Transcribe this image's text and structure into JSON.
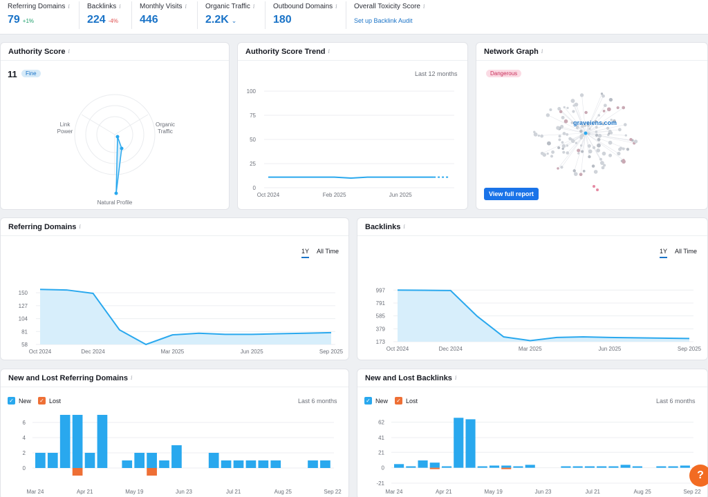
{
  "metrics": [
    {
      "label": "Referring Domains",
      "value": "79",
      "change": "+1%",
      "dir": "pos"
    },
    {
      "label": "Backlinks",
      "value": "224",
      "change": "-4%",
      "dir": "neg"
    },
    {
      "label": "Monthly Visits",
      "value": "446"
    },
    {
      "label": "Organic Traffic",
      "value": "2.2K"
    },
    {
      "label": "Outbound Domains",
      "value": "180"
    },
    {
      "label": "Overall Toxicity Score",
      "link": "Set up Backlink Audit"
    }
  ],
  "authority": {
    "title": "Authority Score",
    "score": "11",
    "badge": "Fine",
    "axes": [
      "Link Power",
      "Organic Traffic",
      "Natural Profile"
    ]
  },
  "trend": {
    "title": "Authority Score Trend",
    "range": "Last 12 months"
  },
  "network": {
    "title": "Network Graph",
    "badge": "Dangerous",
    "domain": "graveiens.com",
    "button": "View full report"
  },
  "referring": {
    "title": "Referring Domains",
    "tabs": [
      "1Y",
      "All Time"
    ]
  },
  "backlinks": {
    "title": "Backlinks",
    "tabs": [
      "1Y",
      "All Time"
    ]
  },
  "newlost_rd": {
    "title": "New and Lost Referring Domains",
    "legend_new": "New",
    "legend_lost": "Lost",
    "range": "Last 6 months"
  },
  "newlost_bl": {
    "title": "New and Lost Backlinks",
    "legend_new": "New",
    "legend_lost": "Lost",
    "range": "Last 6 months"
  },
  "colors": {
    "accent": "#1a73c7",
    "new": "#29a8ee",
    "lost": "#ee6f35",
    "area": "#d7eefb"
  },
  "chart_data": [
    {
      "id": "trend",
      "type": "line",
      "x": [
        "Oct 2024",
        "Nov 2024",
        "Dec 2024",
        "Jan 2025",
        "Feb 2025",
        "Mar 2025",
        "Apr 2025",
        "May 2025",
        "Jun 2025",
        "Jul 2025",
        "Aug 2025",
        "Sep 2025"
      ],
      "values": [
        11,
        11,
        11,
        11,
        11,
        10,
        11,
        11,
        11,
        11,
        11,
        11
      ],
      "projected_from": 10,
      "xticks": [
        "Oct 2024",
        "Feb 2025",
        "Jun 2025"
      ],
      "yticks": [
        0,
        25,
        50,
        75,
        100
      ],
      "ylim": [
        0,
        100
      ],
      "grid": true
    },
    {
      "id": "referring",
      "type": "area",
      "x": [
        "Oct 2024",
        "Nov 2024",
        "Dec 2024",
        "Jan 2025",
        "Feb 2025",
        "Mar 2025",
        "Apr 2025",
        "May 2025",
        "Jun 2025",
        "Jul 2025",
        "Aug 2025",
        "Sep 2025"
      ],
      "values": [
        156,
        155,
        149,
        84,
        58,
        75,
        78,
        76,
        76,
        77,
        78,
        79
      ],
      "xticks": [
        "Oct 2024",
        "Dec 2024",
        "Mar 2025",
        "Jun 2025",
        "Sep 2025"
      ],
      "yticks": [
        58,
        81,
        104,
        127,
        150
      ],
      "ylim": [
        58,
        160
      ],
      "grid": true
    },
    {
      "id": "backlinks",
      "type": "area",
      "x": [
        "Oct 2024",
        "Nov 2024",
        "Dec 2024",
        "Jan 2025",
        "Feb 2025",
        "Mar 2025",
        "Apr 2025",
        "May 2025",
        "Jun 2025",
        "Jul 2025",
        "Aug 2025",
        "Sep 2025"
      ],
      "values": [
        997,
        995,
        990,
        580,
        250,
        190,
        240,
        250,
        240,
        235,
        230,
        224
      ],
      "xticks": [
        "Oct 2024",
        "Dec 2024",
        "Mar 2025",
        "Jun 2025",
        "Sep 2025"
      ],
      "yticks": [
        173,
        379,
        585,
        791,
        997
      ],
      "ylim": [
        173,
        1000
      ],
      "grid": true
    },
    {
      "id": "newlost_rd",
      "type": "bar",
      "series": [
        {
          "name": "New",
          "values": [
            2,
            2,
            7,
            7,
            2,
            7,
            0,
            1,
            2,
            2,
            1,
            3,
            0,
            0,
            2,
            1,
            1,
            1,
            1,
            1,
            0,
            0,
            1,
            1
          ]
        },
        {
          "name": "Lost",
          "values": [
            0,
            0,
            0,
            -1,
            0,
            0,
            0,
            0,
            0,
            -1,
            0,
            0,
            0,
            0,
            0,
            0,
            0,
            0,
            0,
            0,
            0,
            0,
            0,
            0
          ]
        }
      ],
      "xticks": [
        "Mar 24",
        "Apr 21",
        "May 19",
        "Jun 23",
        "Jul 21",
        "Aug 25",
        "Sep 22"
      ],
      "yticks": [
        0,
        2,
        4,
        6
      ],
      "ylim": [
        -2,
        7
      ],
      "grid": true
    },
    {
      "id": "newlost_bl",
      "type": "bar",
      "series": [
        {
          "name": "New",
          "values": [
            5,
            2,
            10,
            7,
            2,
            68,
            66,
            2,
            3,
            3,
            2,
            4,
            0,
            0,
            2,
            2,
            2,
            2,
            2,
            4,
            2,
            0,
            2,
            2,
            3
          ]
        },
        {
          "name": "Lost",
          "values": [
            0,
            0,
            0,
            -1,
            0,
            0,
            0,
            0,
            0,
            -1,
            0,
            0,
            0,
            0,
            0,
            0,
            0,
            0,
            0,
            0,
            0,
            0,
            0,
            0,
            0
          ]
        }
      ],
      "xticks": [
        "Mar 24",
        "Apr 21",
        "May 19",
        "Jun 23",
        "Jul 21",
        "Aug 25",
        "Sep 22"
      ],
      "yticks": [
        -21,
        0,
        21,
        41,
        62
      ],
      "ylim": [
        -21,
        72
      ],
      "grid": true
    }
  ]
}
